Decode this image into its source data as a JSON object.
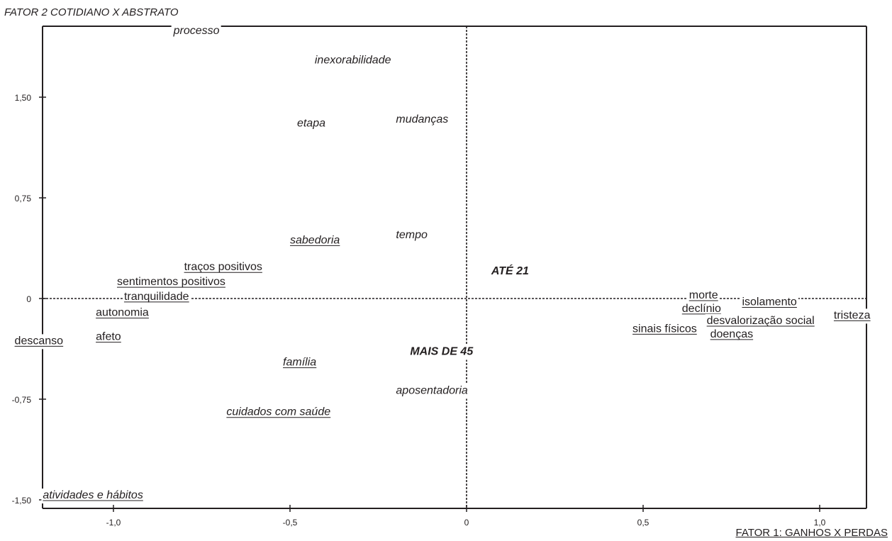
{
  "chart_data": {
    "type": "scatter",
    "title": "",
    "ylabel": "FATOR 2 COTIDIANO X ABSTRATO",
    "xlabel": "FATOR 1: GANHOS X PERDAS",
    "xlim": [
      -1.2,
      1.13
    ],
    "ylim": [
      -1.5,
      1.93
    ],
    "x_ticks": [
      "-1,0",
      "-0,5",
      "0",
      "0,5",
      "1,0"
    ],
    "y_ticks": [
      "1,50",
      "0,75",
      "0",
      "-0,75",
      "-1,50"
    ],
    "x_tick_values": [
      -1.0,
      -0.5,
      0,
      0.5,
      1.0
    ],
    "y_tick_values": [
      1.5,
      0.75,
      0,
      -0.75,
      -1.5
    ],
    "grid": false,
    "reference_lines": [
      "x = 0",
      "y = 0"
    ],
    "points": [
      {
        "label": "processo",
        "x": -0.83,
        "y": 1.97,
        "italic": true,
        "underline": false,
        "bold": false
      },
      {
        "label": "inexorabilidade",
        "x": -0.43,
        "y": 1.75,
        "italic": true,
        "underline": false,
        "bold": false
      },
      {
        "label": "etapa",
        "x": -0.48,
        "y": 1.28,
        "italic": true,
        "underline": false,
        "bold": false
      },
      {
        "label": "mudanças",
        "x": -0.2,
        "y": 1.31,
        "italic": true,
        "underline": false,
        "bold": false
      },
      {
        "label": "sabedoria",
        "x": -0.5,
        "y": 0.41,
        "italic": true,
        "underline": true,
        "bold": false
      },
      {
        "label": "tempo",
        "x": -0.2,
        "y": 0.45,
        "italic": true,
        "underline": false,
        "bold": false
      },
      {
        "label": "traços positivos",
        "x": -0.8,
        "y": 0.21,
        "italic": false,
        "underline": true,
        "bold": false
      },
      {
        "label": "ATÉ 21",
        "x": 0.07,
        "y": 0.18,
        "italic": true,
        "underline": false,
        "bold": true
      },
      {
        "label": "sentimentos positivos",
        "x": -0.99,
        "y": 0.1,
        "italic": false,
        "underline": true,
        "bold": false
      },
      {
        "label": "tranquilidade",
        "x": -0.97,
        "y": -0.01,
        "italic": false,
        "underline": true,
        "bold": false
      },
      {
        "label": "autonomia",
        "x": -1.05,
        "y": -0.13,
        "italic": false,
        "underline": true,
        "bold": false
      },
      {
        "label": "descanso",
        "x": -1.28,
        "y": -0.34,
        "italic": false,
        "underline": true,
        "bold": false
      },
      {
        "label": "afeto",
        "x": -1.05,
        "y": -0.31,
        "italic": false,
        "underline": true,
        "bold": false
      },
      {
        "label": "MAIS DE 45",
        "x": -0.16,
        "y": -0.42,
        "italic": true,
        "underline": false,
        "bold": true
      },
      {
        "label": "família",
        "x": -0.52,
        "y": -0.5,
        "italic": true,
        "underline": true,
        "bold": false
      },
      {
        "label": "aposentadoria",
        "x": -0.2,
        "y": -0.71,
        "italic": true,
        "underline": false,
        "bold": false
      },
      {
        "label": "cuidados com saúde",
        "x": -0.68,
        "y": -0.87,
        "italic": true,
        "underline": true,
        "bold": false
      },
      {
        "label": "atividades e hábitos",
        "x": -1.2,
        "y": -1.49,
        "italic": true,
        "underline": true,
        "bold": false
      },
      {
        "label": "morte",
        "x": 0.63,
        "y": 0.0,
        "italic": false,
        "underline": true,
        "bold": false
      },
      {
        "label": "declínio",
        "x": 0.61,
        "y": -0.1,
        "italic": false,
        "underline": true,
        "bold": false
      },
      {
        "label": "isolamento",
        "x": 0.78,
        "y": -0.05,
        "italic": false,
        "underline": true,
        "bold": false
      },
      {
        "label": "tristeza",
        "x": 1.04,
        "y": -0.15,
        "italic": false,
        "underline": true,
        "bold": false
      },
      {
        "label": "desvalorização social",
        "x": 0.68,
        "y": -0.19,
        "italic": false,
        "underline": true,
        "bold": false
      },
      {
        "label": "sinais físicos",
        "x": 0.47,
        "y": -0.25,
        "italic": false,
        "underline": true,
        "bold": false
      },
      {
        "label": "doenças",
        "x": 0.69,
        "y": -0.29,
        "italic": false,
        "underline": true,
        "bold": false
      }
    ]
  }
}
